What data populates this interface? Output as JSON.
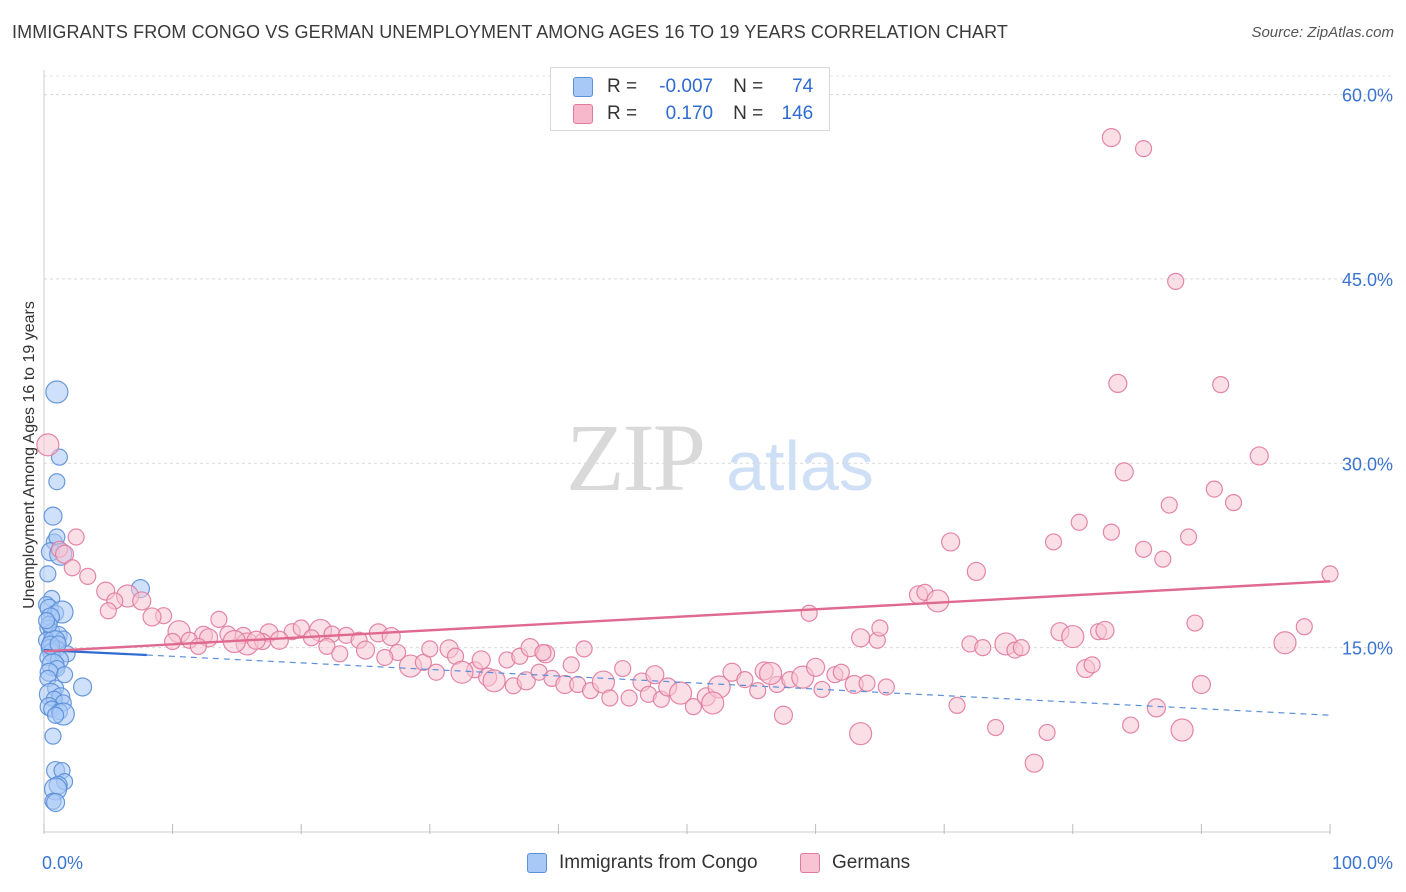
{
  "title": "IMMIGRANTS FROM CONGO VS GERMAN UNEMPLOYMENT AMONG AGES 16 TO 19 YEARS CORRELATION CHART",
  "source": "Source: ZipAtlas.com",
  "watermark": {
    "zip": "ZIP",
    "atlas": "atlas"
  },
  "legend": {
    "rows": [
      {
        "r_label": "R =",
        "r_value": "-0.007",
        "n_label": "N =",
        "n_value": "74",
        "color": "#a8c8f5",
        "border": "#5b8fd8"
      },
      {
        "r_label": "R =",
        "r_value": "0.170",
        "n_label": "N =",
        "n_value": "146",
        "color": "#f8b8cc",
        "border": "#e07a9e"
      }
    ]
  },
  "bottom_legend": [
    {
      "label": "Immigrants from Congo",
      "color": "#a8c8f5",
      "border": "#5b8fd8"
    },
    {
      "label": "Germans",
      "color": "#f8c4d4",
      "border": "#e07a9e"
    }
  ],
  "chart_data": {
    "type": "scatter",
    "title": "IMMIGRANTS FROM CONGO VS GERMAN UNEMPLOYMENT AMONG AGES 16 TO 19 YEARS CORRELATION CHART",
    "xlabel": "",
    "ylabel": "Unemployment Among Ages 16 to 19 years",
    "xlim": [
      0,
      100
    ],
    "ylim": [
      0,
      62
    ],
    "x_tick_labels": [
      "0.0%",
      "100.0%"
    ],
    "y_tick_labels": [
      "15.0%",
      "30.0%",
      "45.0%",
      "60.0%"
    ],
    "y_ticks": [
      15,
      30,
      45,
      60
    ],
    "grid": true,
    "legend_position": "top-center",
    "series": [
      {
        "name": "Immigrants from Congo",
        "color": "#5b8fd8",
        "fill": "#a8c8f5",
        "trend": {
          "x": [
            0,
            8
          ],
          "y": [
            14.8,
            14.4
          ],
          "dashed_extension": {
            "x": [
              8,
              100
            ],
            "y": [
              14.4,
              9.5
            ]
          }
        },
        "points": [
          [
            1.0,
            35.8
          ],
          [
            1.0,
            28.5
          ],
          [
            1.2,
            30.5
          ],
          [
            0.7,
            25.7
          ],
          [
            0.8,
            23.6
          ],
          [
            1.0,
            24.0
          ],
          [
            0.5,
            22.8
          ],
          [
            1.3,
            22.6
          ],
          [
            0.3,
            21.0
          ],
          [
            7.5,
            19.8
          ],
          [
            0.6,
            19.0
          ],
          [
            0.2,
            18.5
          ],
          [
            0.4,
            18.2
          ],
          [
            0.9,
            17.8
          ],
          [
            1.4,
            17.9
          ],
          [
            0.5,
            17.5
          ],
          [
            0.3,
            16.6
          ],
          [
            0.6,
            16.3
          ],
          [
            1.1,
            16.0
          ],
          [
            1.5,
            15.7
          ],
          [
            0.2,
            15.6
          ],
          [
            0.8,
            15.5
          ],
          [
            0.4,
            15.0
          ],
          [
            1.0,
            14.9
          ],
          [
            0.6,
            14.6
          ],
          [
            1.8,
            14.5
          ],
          [
            0.3,
            14.2
          ],
          [
            1.2,
            14.0
          ],
          [
            0.7,
            13.6
          ],
          [
            1.0,
            13.3
          ],
          [
            0.4,
            13.0
          ],
          [
            1.6,
            12.8
          ],
          [
            0.3,
            12.5
          ],
          [
            3.0,
            11.8
          ],
          [
            0.9,
            11.7
          ],
          [
            0.5,
            11.2
          ],
          [
            1.3,
            11.0
          ],
          [
            0.8,
            10.8
          ],
          [
            1.5,
            10.5
          ],
          [
            0.4,
            10.2
          ],
          [
            0.6,
            10.0
          ],
          [
            1.2,
            9.8
          ],
          [
            1.5,
            9.6
          ],
          [
            0.9,
            9.5
          ],
          [
            0.7,
            7.8
          ],
          [
            0.9,
            5.0
          ],
          [
            1.4,
            5.0
          ],
          [
            1.6,
            4.1
          ],
          [
            1.1,
            3.8
          ],
          [
            0.9,
            3.5
          ],
          [
            0.7,
            2.5
          ],
          [
            0.9,
            2.4
          ],
          [
            0.4,
            16.9
          ],
          [
            0.2,
            17.2
          ],
          [
            0.5,
            15.2
          ],
          [
            1.1,
            15.3
          ]
        ]
      },
      {
        "name": "Germans",
        "color": "#e07a9e",
        "fill": "#f8c4d4",
        "trend": {
          "x": [
            0,
            100
          ],
          "y": [
            14.7,
            20.4
          ]
        },
        "points": [
          [
            0.3,
            31.5
          ],
          [
            2.5,
            24.0
          ],
          [
            1.2,
            23.0
          ],
          [
            1.6,
            22.6
          ],
          [
            2.2,
            21.5
          ],
          [
            3.4,
            20.8
          ],
          [
            4.8,
            19.6
          ],
          [
            6.5,
            19.2
          ],
          [
            5.5,
            18.8
          ],
          [
            7.6,
            18.8
          ],
          [
            5.0,
            18.0
          ],
          [
            9.3,
            17.6
          ],
          [
            8.4,
            17.5
          ],
          [
            13.6,
            17.3
          ],
          [
            10.5,
            16.3
          ],
          [
            12.4,
            16.0
          ],
          [
            14.3,
            16.1
          ],
          [
            15.5,
            16.0
          ],
          [
            17.5,
            16.2
          ],
          [
            19.3,
            16.3
          ],
          [
            20.0,
            16.6
          ],
          [
            21.5,
            16.4
          ],
          [
            22.4,
            16.1
          ],
          [
            23.5,
            16.0
          ],
          [
            26.0,
            16.2
          ],
          [
            10.0,
            15.5
          ],
          [
            11.3,
            15.6
          ],
          [
            12.8,
            15.8
          ],
          [
            15.8,
            15.3
          ],
          [
            17.0,
            15.5
          ],
          [
            18.3,
            15.6
          ],
          [
            20.8,
            15.8
          ],
          [
            24.5,
            15.6
          ],
          [
            27.0,
            15.9
          ],
          [
            12.0,
            15.1
          ],
          [
            14.8,
            15.5
          ],
          [
            16.5,
            15.6
          ],
          [
            22.0,
            15.1
          ],
          [
            23.0,
            14.5
          ],
          [
            25.0,
            14.8
          ],
          [
            27.5,
            14.6
          ],
          [
            26.5,
            14.2
          ],
          [
            28.5,
            13.5
          ],
          [
            29.5,
            13.8
          ],
          [
            30.0,
            14.9
          ],
          [
            31.5,
            14.9
          ],
          [
            32.0,
            14.3
          ],
          [
            33.5,
            13.2
          ],
          [
            34.5,
            12.6
          ],
          [
            35.0,
            12.3
          ],
          [
            36.5,
            11.9
          ],
          [
            37.5,
            12.3
          ],
          [
            38.5,
            13.0
          ],
          [
            39.5,
            12.5
          ],
          [
            40.5,
            12.0
          ],
          [
            30.5,
            13.0
          ],
          [
            32.5,
            13.0
          ],
          [
            34.0,
            14.0
          ],
          [
            36.0,
            14.0
          ],
          [
            37.0,
            14.3
          ],
          [
            39.0,
            14.5
          ],
          [
            41.5,
            12.0
          ],
          [
            42.5,
            11.5
          ],
          [
            43.5,
            12.2
          ],
          [
            44.0,
            10.9
          ],
          [
            45.5,
            10.9
          ],
          [
            46.5,
            12.2
          ],
          [
            47.0,
            11.2
          ],
          [
            48.0,
            10.8
          ],
          [
            48.5,
            11.8
          ],
          [
            49.5,
            11.3
          ],
          [
            50.5,
            10.2
          ],
          [
            51.5,
            11.0
          ],
          [
            42.0,
            14.9
          ],
          [
            45.0,
            13.3
          ],
          [
            47.5,
            12.8
          ],
          [
            41.0,
            13.6
          ],
          [
            52.5,
            11.8
          ],
          [
            53.5,
            13.0
          ],
          [
            54.5,
            12.4
          ],
          [
            55.5,
            11.5
          ],
          [
            56.0,
            13.1
          ],
          [
            57.0,
            12.0
          ],
          [
            58.0,
            12.4
          ],
          [
            59.0,
            12.6
          ],
          [
            60.5,
            11.6
          ],
          [
            61.5,
            12.8
          ],
          [
            63.0,
            12.0
          ],
          [
            64.0,
            12.1
          ],
          [
            65.5,
            11.8
          ],
          [
            57.5,
            9.5
          ],
          [
            52.0,
            10.5
          ],
          [
            59.5,
            17.8
          ],
          [
            63.5,
            15.8
          ],
          [
            64.8,
            15.6
          ],
          [
            65.0,
            16.6
          ],
          [
            68.0,
            19.3
          ],
          [
            68.5,
            19.5
          ],
          [
            69.5,
            18.8
          ],
          [
            70.5,
            23.6
          ],
          [
            71.0,
            10.3
          ],
          [
            72.0,
            15.3
          ],
          [
            72.5,
            21.2
          ],
          [
            73.0,
            15.0
          ],
          [
            74.0,
            8.5
          ],
          [
            74.8,
            15.3
          ],
          [
            75.5,
            14.8
          ],
          [
            76.0,
            15.0
          ],
          [
            77.0,
            5.6
          ],
          [
            78.0,
            8.1
          ],
          [
            78.5,
            23.6
          ],
          [
            79.0,
            16.3
          ],
          [
            80.0,
            15.9
          ],
          [
            80.5,
            25.2
          ],
          [
            81.0,
            13.3
          ],
          [
            81.5,
            13.6
          ],
          [
            82.0,
            16.3
          ],
          [
            82.5,
            16.4
          ],
          [
            83.0,
            24.4
          ],
          [
            63.5,
            8.0
          ],
          [
            84.0,
            29.3
          ],
          [
            84.5,
            8.7
          ],
          [
            85.5,
            23.0
          ],
          [
            86.5,
            10.1
          ],
          [
            87.0,
            22.2
          ],
          [
            87.5,
            26.6
          ],
          [
            88.5,
            8.3
          ],
          [
            89.0,
            24.0
          ],
          [
            89.5,
            17.0
          ],
          [
            90.0,
            12.0
          ],
          [
            91.0,
            27.9
          ],
          [
            92.5,
            26.8
          ],
          [
            94.5,
            30.6
          ],
          [
            96.5,
            15.4
          ],
          [
            98.0,
            16.7
          ],
          [
            83.5,
            36.5
          ],
          [
            91.5,
            36.4
          ],
          [
            88.0,
            44.8
          ],
          [
            83.0,
            56.5
          ],
          [
            85.5,
            55.6
          ],
          [
            56.5,
            12.9
          ],
          [
            60.0,
            13.4
          ],
          [
            62.0,
            13.0
          ],
          [
            100.0,
            21.0
          ],
          [
            37.8,
            15.0
          ],
          [
            38.8,
            14.6
          ]
        ]
      }
    ]
  }
}
